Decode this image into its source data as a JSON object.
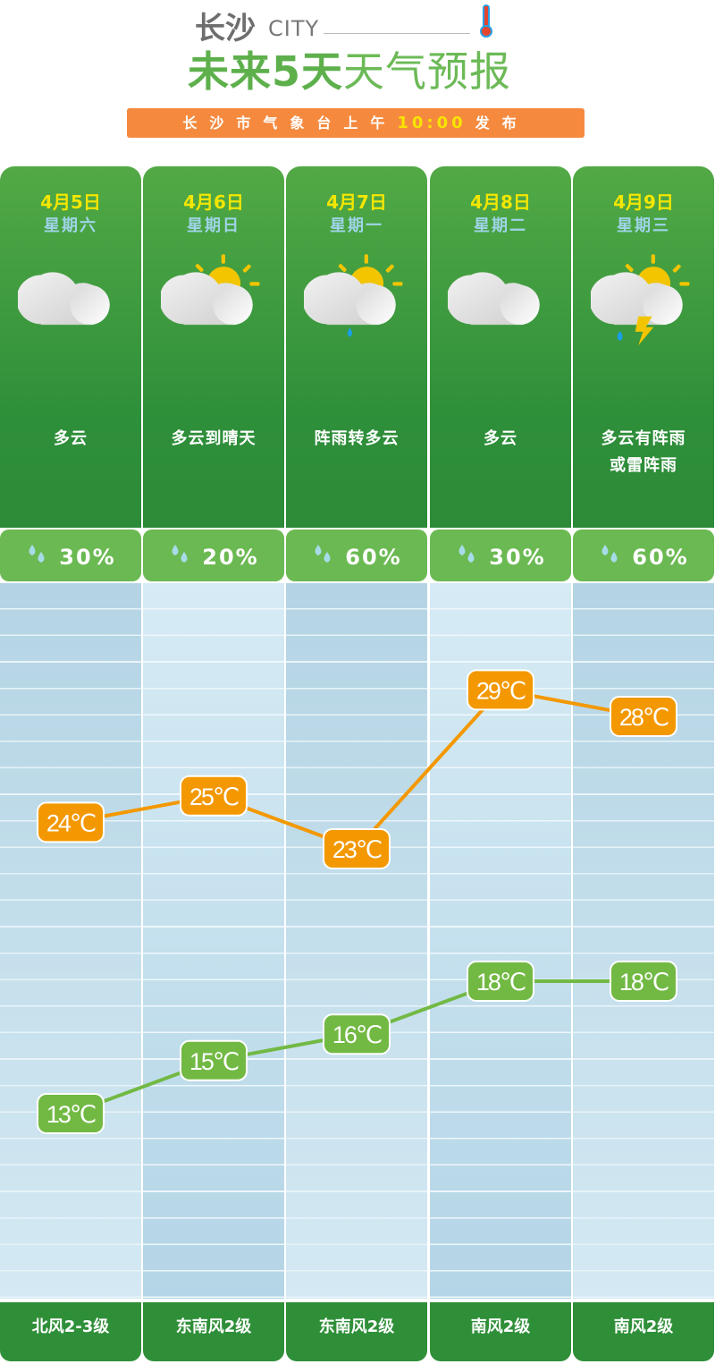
{
  "header": {
    "city": "长沙",
    "city_en": "CITY",
    "title_bold": "未来5天",
    "title_light": "天气预报",
    "issuer": "长沙市气象台上午",
    "time": "10:00",
    "issue_suffix": "发布"
  },
  "colors": {
    "high": "#f39800",
    "low": "#72b944",
    "date": "#f3e600",
    "weekday": "#9fd4e8"
  },
  "days": [
    {
      "date": "4月5日",
      "weekday": "星期六",
      "icon": "cloudy-icon",
      "desc": "多云",
      "desc2": "",
      "rain": "30%",
      "wind": "北风2-3级"
    },
    {
      "date": "4月6日",
      "weekday": "星期日",
      "icon": "partly-sunny-icon",
      "desc": "多云到晴天",
      "desc2": "",
      "rain": "20%",
      "wind": "东南风2级"
    },
    {
      "date": "4月7日",
      "weekday": "星期一",
      "icon": "sun-shower-icon",
      "desc": "阵雨转多云",
      "desc2": "",
      "rain": "60%",
      "wind": "东南风2级"
    },
    {
      "date": "4月8日",
      "weekday": "星期二",
      "icon": "cloudy-icon",
      "desc": "多云",
      "desc2": "",
      "rain": "30%",
      "wind": "南风2级"
    },
    {
      "date": "4月9日",
      "weekday": "星期三",
      "icon": "thunder-shower-icon",
      "desc": "多云有阵雨",
      "desc2": "或雷阵雨",
      "rain": "60%",
      "wind": "南风2级"
    }
  ],
  "chart_data": {
    "type": "line",
    "categories": [
      "4月5日",
      "4月6日",
      "4月7日",
      "4月8日",
      "4月9日"
    ],
    "series": [
      {
        "key": "high",
        "values": [
          24,
          25,
          23,
          29,
          28
        ],
        "labels": [
          "24℃",
          "25℃",
          "23℃",
          "29℃",
          "28℃"
        ]
      },
      {
        "key": "low",
        "values": [
          13,
          15,
          16,
          18,
          18
        ],
        "labels": [
          "13℃",
          "15℃",
          "16℃",
          "18℃",
          "18℃"
        ]
      }
    ],
    "unit": "℃",
    "grid": true
  }
}
